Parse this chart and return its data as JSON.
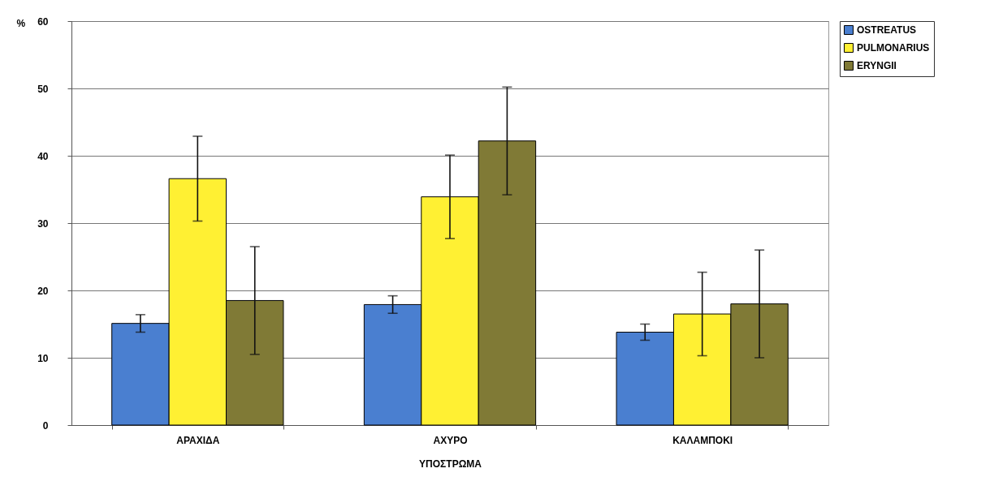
{
  "chart_data": {
    "type": "bar",
    "xlabel": "ΥΠΟΣΤΡΩΜΑ",
    "ylabel": "%",
    "categories": [
      "ΑΡΑΧΙΔΑ",
      "ΑΧΥΡΟ",
      "ΚΑΛΑΜΠΟΚΙ"
    ],
    "series": [
      {
        "name": "OSTREATUS",
        "color": "#4a7fd0",
        "values": [
          15.1,
          17.9,
          13.8
        ],
        "errors": [
          1.3,
          1.3,
          1.2
        ]
      },
      {
        "name": "PULMONARIUS",
        "color": "#fff033",
        "values": [
          36.6,
          33.9,
          16.5
        ],
        "errors": [
          6.3,
          6.2,
          6.2
        ]
      },
      {
        "name": "ERYNGII",
        "color": "#807a36",
        "values": [
          18.5,
          42.2,
          18.0
        ],
        "errors": [
          8.0,
          8.0,
          8.0
        ]
      }
    ],
    "ylim": [
      0,
      60
    ],
    "yticks": [
      0,
      10,
      20,
      30,
      40,
      50,
      60
    ],
    "grid": "y",
    "legend": "right"
  }
}
